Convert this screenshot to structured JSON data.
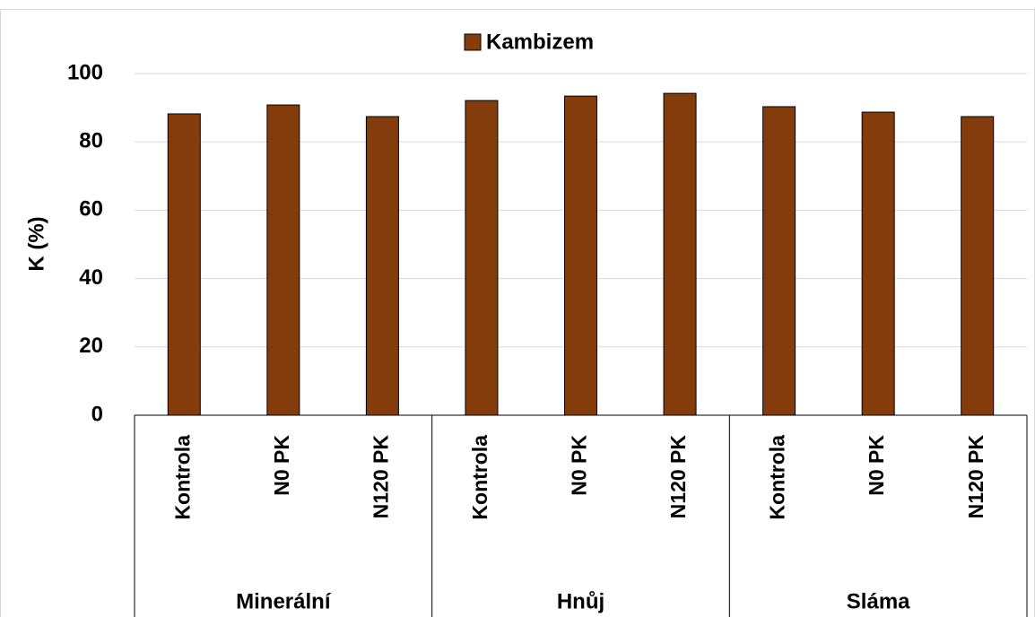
{
  "chart_data": {
    "type": "bar",
    "y_label": "K (%)",
    "groups": [
      {
        "name": "Minerální",
        "categories": [
          "Kontrola",
          "N0 PK",
          "N120 PK"
        ]
      },
      {
        "name": "Hnůj",
        "categories": [
          "Kontrola",
          "N0 PK",
          "N120 PK"
        ]
      },
      {
        "name": "Sláma",
        "categories": [
          "Kontrola",
          "N0 PK",
          "N120 PK"
        ]
      }
    ],
    "series": [
      {
        "name": "Kambizem",
        "color": "#843c0c",
        "values": [
          88.2,
          90.8,
          87.4,
          92.1,
          93.4,
          94.2,
          90.3,
          88.7,
          87.4
        ]
      }
    ],
    "ylim": [
      0,
      100
    ],
    "yticks": [
      0,
      20,
      40,
      60,
      80,
      100
    ],
    "grid": true,
    "legend": "top"
  }
}
